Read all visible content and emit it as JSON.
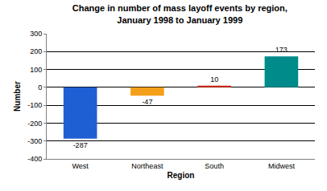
{
  "chart_data": {
    "type": "bar",
    "title": "Change in number of mass layoff events by region, January 1998 to January 1999",
    "x_label": "Region",
    "y_label": "Number",
    "categories": [
      "West",
      "Northeast",
      "South",
      "Midwest"
    ],
    "values": [
      -287,
      -47,
      10,
      173
    ],
    "colors": [
      "#1f5fd3",
      "#f5a01a",
      "#d42a1a",
      "#008b8b"
    ],
    "ylim": [
      -400,
      300
    ],
    "yticks": [
      -400,
      -300,
      -200,
      -100,
      0,
      100,
      200,
      300
    ],
    "grid": true,
    "data_labels": true
  }
}
